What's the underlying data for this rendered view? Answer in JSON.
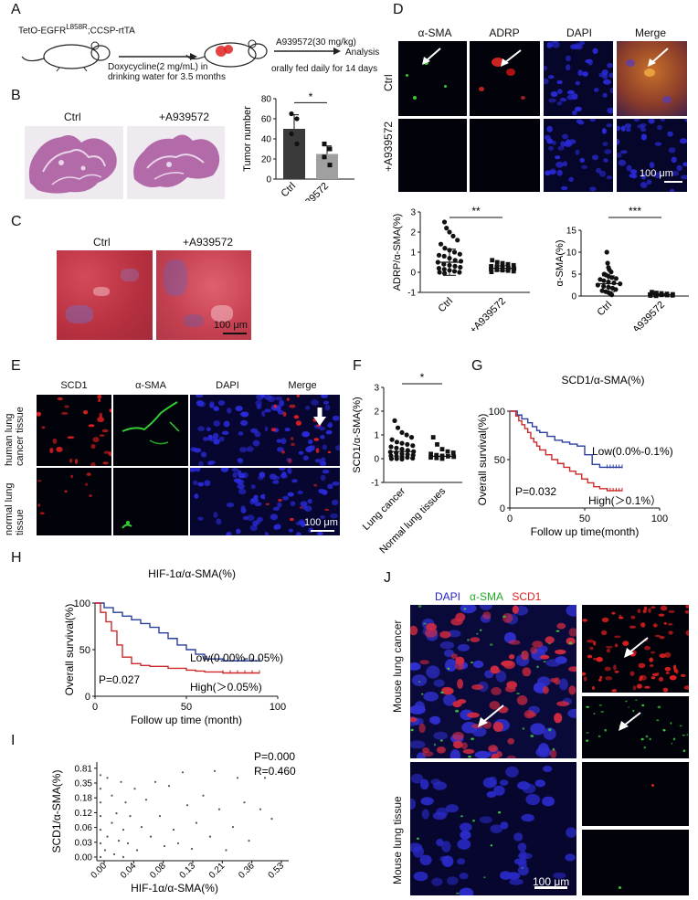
{
  "panels": {
    "A": "A",
    "B": "B",
    "C": "C",
    "D": "D",
    "E": "E",
    "F": "F",
    "G": "G",
    "H": "H",
    "I": "I",
    "J": "J"
  },
  "panelA": {
    "transgene_prefix": "TetO-EGFR",
    "transgene_sup": "L858R",
    "transgene_suffix": ";CCSP-rtTA",
    "dox_line1": "Doxycycline(2 mg/mL) in",
    "dox_line2": "drinking water for 3.5 months",
    "drug_dose": "A939572(30 mg/kg)",
    "drug_schedule": "orally fed daily for 14 days",
    "analysis": "Analysis"
  },
  "panelB": {
    "ctrl": "Ctrl",
    "treated": "+A939572",
    "chart_data": {
      "type": "bar",
      "categories": [
        "Ctrl",
        "+A939572"
      ],
      "values": [
        50,
        25
      ],
      "points": [
        [
          65,
          60,
          45,
          35
        ],
        [
          35,
          30,
          22,
          14
        ]
      ],
      "ylabel": "Tumor number",
      "ylim": [
        0,
        80
      ],
      "yticks": [
        "0",
        "20",
        "40",
        "60",
        "80"
      ],
      "sig": "*",
      "colors": [
        "#3a3a3a",
        "#a0a0a0"
      ]
    }
  },
  "panelC": {
    "ctrl": "Ctrl",
    "treated": "+A939572",
    "scalebar": "100 μm"
  },
  "panelD": {
    "cols": [
      "α-SMA",
      "ADRP",
      "DAPI",
      "Merge"
    ],
    "rows": [
      "Ctrl",
      "+A939572"
    ],
    "scalebar": "100 μm",
    "chart_left": {
      "type": "scatter",
      "ylabel": "ADRP/α-SMA(%)",
      "categories": [
        "Ctrl",
        "+A939572"
      ],
      "yticks": [
        "-1",
        "0",
        "1",
        "2",
        "3"
      ],
      "ylim": [
        -1,
        3
      ],
      "mean": [
        0.5,
        0.2
      ],
      "sd": [
        0.65,
        0.12
      ],
      "sig": "**",
      "ctrl_points": [
        2.5,
        2.2,
        2.0,
        1.8,
        1.6,
        1.4,
        1.2,
        1.1,
        1.0,
        0.9,
        0.85,
        0.8,
        0.7,
        0.6,
        0.55,
        0.5,
        0.4,
        0.35,
        0.3,
        0.25,
        0.2,
        0.15,
        0.1,
        0.05,
        0.0,
        0.0,
        -0.05
      ],
      "trt_points": [
        0.6,
        0.5,
        0.45,
        0.4,
        0.35,
        0.3,
        0.28,
        0.25,
        0.2,
        0.18,
        0.15,
        0.12,
        0.1,
        0.08,
        0.05,
        0.02
      ]
    },
    "chart_right": {
      "type": "scatter",
      "ylabel": "α-SMA(%)",
      "categories": [
        "Ctrl",
        "+A939572"
      ],
      "yticks": [
        "0",
        "5",
        "10",
        "15"
      ],
      "ylim": [
        0,
        15
      ],
      "mean": [
        2.8,
        0.3
      ],
      "sd": [
        1.8,
        0.2
      ],
      "sig": "***",
      "ctrl_points": [
        10,
        7.5,
        6.5,
        6.0,
        5.5,
        5.0,
        4.8,
        4.5,
        4.2,
        4.0,
        3.8,
        3.5,
        3.2,
        3.0,
        2.8,
        2.5,
        2.2,
        2.0,
        1.8,
        1.5,
        1.2,
        1.0,
        0.8,
        0.5,
        0.3
      ],
      "trt_points": [
        0.9,
        0.7,
        0.6,
        0.5,
        0.4,
        0.35,
        0.3,
        0.25,
        0.2,
        0.15,
        0.1,
        0.05
      ]
    }
  },
  "panelE": {
    "cols": [
      "SCD1",
      "α-SMA",
      "DAPI",
      "Merge"
    ],
    "rows": [
      "human lung cancer tissue",
      "normal lung tissue"
    ],
    "row1a": "human lung",
    "row1b": "cancer tissue",
    "row2a": "normal lung",
    "row2b": "tissue",
    "scalebar": "100 μm"
  },
  "panelF": {
    "chart_data": {
      "type": "scatter",
      "ylabel": "SCD1/α-SMA(%)",
      "categories": [
        "Lung cancer",
        "Normal lung tissues"
      ],
      "yticks": [
        "-1",
        "0",
        "1",
        "2",
        "3"
      ],
      "ylim": [
        -1,
        3
      ],
      "sig": "*",
      "mean": [
        0.3,
        0.1
      ],
      "cancer_points": [
        1.6,
        1.3,
        1.1,
        1.0,
        0.9,
        0.8,
        0.7,
        0.65,
        0.6,
        0.55,
        0.5,
        0.45,
        0.4,
        0.35,
        0.3,
        0.28,
        0.25,
        0.2,
        0.18,
        0.15,
        0.12,
        0.1,
        0.08,
        0.05,
        0.02,
        0.0,
        0.0,
        -0.02
      ],
      "normal_points": [
        0.9,
        0.6,
        0.4,
        0.3,
        0.25,
        0.2,
        0.15,
        0.12,
        0.1,
        0.08,
        0.05,
        0.03,
        0.0
      ]
    }
  },
  "panelG": {
    "chart_data": {
      "type": "line",
      "title": "SCD1/α-SMA(%)",
      "ylabel": "Overall survival(%)",
      "xlabel": "Follow up time(month)",
      "xlim": [
        0,
        100
      ],
      "ylim": [
        0,
        100
      ],
      "xticks": [
        "0",
        "50",
        "100"
      ],
      "yticks": [
        "0",
        "50",
        "100"
      ],
      "pvalue": "P=0.032",
      "series": [
        {
          "name": "Low(0.0%-0.1%)",
          "color": "#2a3fa0",
          "x": [
            0,
            5,
            8,
            12,
            15,
            18,
            20,
            25,
            30,
            35,
            40,
            45,
            50,
            55,
            60,
            65,
            75
          ],
          "y": [
            100,
            96,
            92,
            88,
            84,
            80,
            78,
            74,
            70,
            68,
            66,
            64,
            55,
            45,
            42,
            42,
            42
          ]
        },
        {
          "name": "High(＞0.1%）",
          "color": "#cc2a2a",
          "x": [
            0,
            4,
            6,
            8,
            10,
            12,
            14,
            16,
            18,
            20,
            24,
            28,
            32,
            36,
            40,
            44,
            48,
            52,
            56,
            60,
            65,
            75
          ],
          "y": [
            100,
            95,
            90,
            86,
            82,
            78,
            72,
            68,
            64,
            60,
            55,
            50,
            46,
            42,
            38,
            35,
            30,
            26,
            22,
            20,
            18,
            18
          ]
        }
      ]
    }
  },
  "panelH": {
    "chart_data": {
      "type": "line",
      "title": "HIF-1α/α-SMA(%)",
      "ylabel": "Overall survival(%)",
      "xlabel": "Follow up time (month)",
      "xlim": [
        0,
        100
      ],
      "ylim": [
        0,
        100
      ],
      "xticks": [
        "0",
        "50",
        "100"
      ],
      "yticks": [
        "0",
        "50",
        "100"
      ],
      "pvalue": "P=0.027",
      "series": [
        {
          "name": "Low(0.00%-0.05%)",
          "color": "#2a3fa0",
          "x": [
            0,
            5,
            10,
            15,
            20,
            25,
            30,
            35,
            40,
            45,
            50,
            55,
            60,
            70,
            90
          ],
          "y": [
            100,
            95,
            90,
            86,
            82,
            78,
            74,
            68,
            62,
            55,
            50,
            45,
            40,
            38,
            38
          ]
        },
        {
          "name": "High(＞0.05%)",
          "color": "#cc2a2a",
          "x": [
            0,
            3,
            6,
            9,
            12,
            15,
            20,
            25,
            30,
            40,
            50,
            55,
            60,
            70,
            90
          ],
          "y": [
            100,
            90,
            80,
            70,
            55,
            42,
            35,
            33,
            32,
            30,
            28,
            27,
            26,
            25,
            25
          ]
        }
      ]
    }
  },
  "panelI": {
    "chart_data": {
      "type": "scatter",
      "ylabel": "SCD1/α-SMA(%)",
      "xlabel": "HIF-1α/α-SMA(%)",
      "xticks": [
        "0.00",
        "0.04",
        "0.08",
        "0.13",
        "0.21",
        "0.36",
        "0.53"
      ],
      "yticks": [
        "0.00",
        "0.03",
        "0.06",
        "0.12",
        "0.18",
        "0.35",
        "0.81"
      ],
      "pvalue": "P=0.000",
      "rvalue": "R=0.460",
      "points": [
        [
          0,
          0
        ],
        [
          0,
          1
        ],
        [
          0,
          2
        ],
        [
          0,
          3
        ],
        [
          0,
          4
        ],
        [
          0,
          5
        ],
        [
          0,
          6
        ],
        [
          0.2,
          0.5
        ],
        [
          0.3,
          1.5
        ],
        [
          0.3,
          5.8
        ],
        [
          0.5,
          2.5
        ],
        [
          0.5,
          4.5
        ],
        [
          0.6,
          0.2
        ],
        [
          0.7,
          3.2
        ],
        [
          0.8,
          1.2
        ],
        [
          0.9,
          5.5
        ],
        [
          1,
          0
        ],
        [
          1,
          2
        ],
        [
          1.1,
          4
        ],
        [
          1.2,
          1
        ],
        [
          1.3,
          3
        ],
        [
          1.5,
          5
        ],
        [
          1.6,
          0.5
        ],
        [
          1.8,
          2.2
        ],
        [
          2,
          4.2
        ],
        [
          2.2,
          1.5
        ],
        [
          2.4,
          5.5
        ],
        [
          2.6,
          3
        ],
        [
          2.8,
          0.8
        ],
        [
          3,
          5.2
        ],
        [
          3.2,
          2
        ],
        [
          3.4,
          1
        ],
        [
          3.6,
          6.2
        ],
        [
          3.8,
          3.8
        ],
        [
          4,
          0.6
        ],
        [
          4.2,
          2.5
        ],
        [
          4.5,
          4.5
        ],
        [
          4.8,
          1.5
        ],
        [
          5,
          6.3
        ],
        [
          5.2,
          3.5
        ],
        [
          5.5,
          0.5
        ],
        [
          5.8,
          2.2
        ],
        [
          6,
          5.8
        ],
        [
          6.3,
          4
        ],
        [
          6.5,
          1.2
        ],
        [
          6.8,
          6.5
        ],
        [
          7,
          3.5
        ],
        [
          7.2,
          5.8
        ],
        [
          7.5,
          2.8
        ],
        [
          7.8,
          6.2
        ]
      ]
    }
  },
  "panelJ": {
    "legend_dapi": "DAPI",
    "legend_sma": "α-SMA",
    "legend_scd1": "SCD1",
    "row1": "Mouse lung cancer",
    "row2": "Mouse lung tissue",
    "scalebar": "100 μm",
    "colors": {
      "dapi": "#2222cc",
      "sma": "#22aa22",
      "scd1": "#dd2222"
    }
  }
}
